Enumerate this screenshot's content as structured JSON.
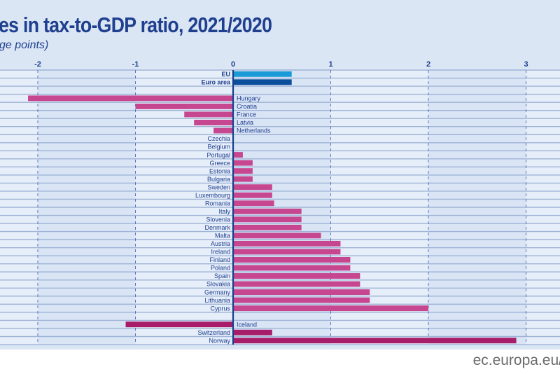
{
  "chart_data": {
    "type": "bar",
    "orientation": "horizontal",
    "title": "es in tax-to-GDP ratio, 2021/2020",
    "subtitle": "ge points)",
    "xlabel": "",
    "ylabel": "",
    "xlim": [
      -2.4,
      3.35
    ],
    "xticks": [
      -2,
      -1,
      0,
      1,
      2,
      3
    ],
    "xtick_labels": [
      "-2",
      "-1",
      "0",
      "1",
      "2",
      "3"
    ],
    "grid": "vertical dashed at ticks",
    "groups": [
      {
        "name": "aggregates",
        "items": [
          {
            "label": "EU",
            "value": 0.6,
            "color": "#1a9ad6",
            "bold": true
          },
          {
            "label": "Euro area",
            "value": 0.6,
            "color": "#0b4f9c",
            "bold": true
          }
        ]
      },
      {
        "name": "member-states",
        "items": [
          {
            "label": "Hungary",
            "value": -2.1,
            "color": "#c6468f"
          },
          {
            "label": "Croatia",
            "value": -1.0,
            "color": "#c6468f"
          },
          {
            "label": "France",
            "value": -0.5,
            "color": "#c6468f"
          },
          {
            "label": "Latvia",
            "value": -0.4,
            "color": "#c6468f"
          },
          {
            "label": "Netherlands",
            "value": -0.2,
            "color": "#c6468f"
          },
          {
            "label": "Czechia",
            "value": 0.0,
            "color": "#c6468f"
          },
          {
            "label": "Belgium",
            "value": 0.0,
            "color": "#c6468f"
          },
          {
            "label": "Portugal",
            "value": 0.1,
            "color": "#c6468f"
          },
          {
            "label": "Greece",
            "value": 0.2,
            "color": "#c6468f"
          },
          {
            "label": "Estonia",
            "value": 0.2,
            "color": "#c6468f"
          },
          {
            "label": "Bulgaria",
            "value": 0.2,
            "color": "#c6468f"
          },
          {
            "label": "Sweden",
            "value": 0.4,
            "color": "#c6468f"
          },
          {
            "label": "Luxembourg",
            "value": 0.4,
            "color": "#c6468f"
          },
          {
            "label": "Romania",
            "value": 0.42,
            "color": "#c6468f"
          },
          {
            "label": "Italy",
            "value": 0.7,
            "color": "#c6468f"
          },
          {
            "label": "Slovenia",
            "value": 0.7,
            "color": "#c6468f"
          },
          {
            "label": "Denmark",
            "value": 0.7,
            "color": "#c6468f"
          },
          {
            "label": "Malta",
            "value": 0.9,
            "color": "#c6468f"
          },
          {
            "label": "Austria",
            "value": 1.1,
            "color": "#c6468f"
          },
          {
            "label": "Ireland",
            "value": 1.1,
            "color": "#c6468f"
          },
          {
            "label": "Finland",
            "value": 1.2,
            "color": "#c6468f"
          },
          {
            "label": "Poland",
            "value": 1.2,
            "color": "#c6468f"
          },
          {
            "label": "Spain",
            "value": 1.3,
            "color": "#c6468f"
          },
          {
            "label": "Slovakia",
            "value": 1.3,
            "color": "#c6468f"
          },
          {
            "label": "Germany",
            "value": 1.4,
            "color": "#c6468f"
          },
          {
            "label": "Lithuania",
            "value": 1.4,
            "color": "#c6468f"
          },
          {
            "label": "Cyprus",
            "value": 2.0,
            "color": "#c6468f"
          }
        ]
      },
      {
        "name": "efta",
        "items": [
          {
            "label": "Iceland",
            "value": -1.1,
            "color": "#a81d6a"
          },
          {
            "label": "Switzerland",
            "value": 0.4,
            "color": "#a81d6a"
          },
          {
            "label": "Norway",
            "value": 2.9,
            "color": "#a81d6a"
          }
        ]
      }
    ]
  },
  "footer": {
    "source": "ec.europa.eu/"
  }
}
